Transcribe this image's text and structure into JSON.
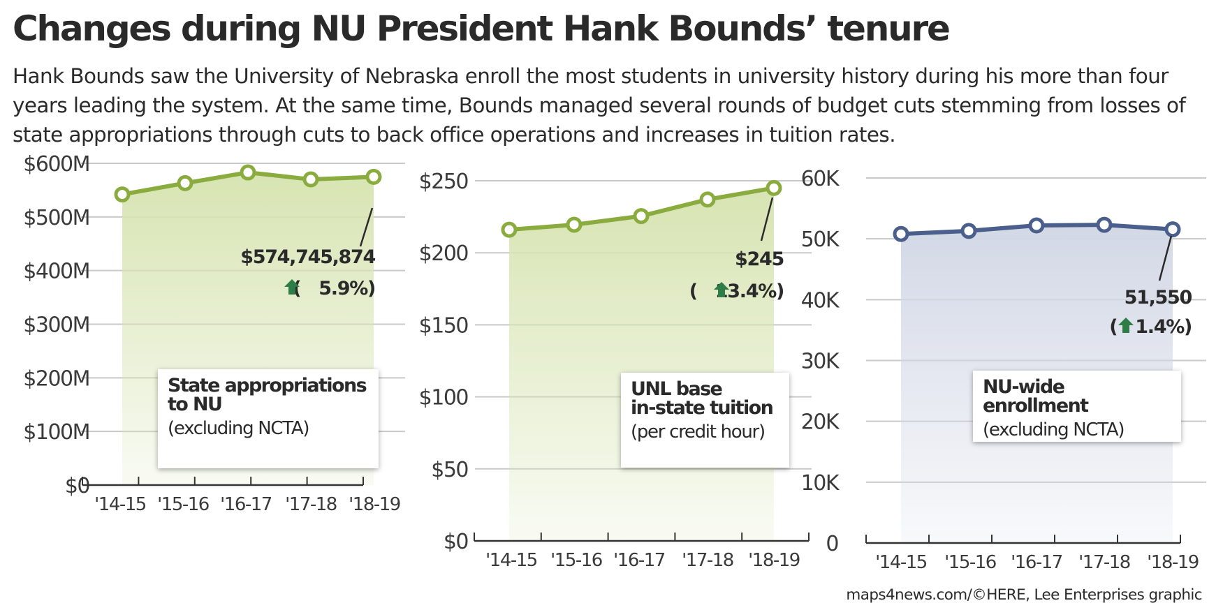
{
  "title": "Changes during NU President Hank Bounds’ tenure",
  "subtitle": "Hank Bounds saw the University of Nebraska enroll the most students in university history during his more than four years leading the system. At the same time, Bounds managed several rounds of budget cuts stemming from losses of state appropriations through cuts to back office operations and increases in tuition rates.",
  "credit": "maps4news.com/©HERE, Lee Enterprises graphic",
  "colors": {
    "green": "#8aac3f",
    "green_fill": "#d7e4b2",
    "blue": "#4a5f8c",
    "blue_fill": "#d3d8e6",
    "arrow": "#2e7d46",
    "grid": "#c9c9c9",
    "axis": "#333333"
  },
  "chart_data": [
    {
      "type": "line",
      "categories": [
        "'14-15",
        "'15-16",
        "'16-17",
        "'17-18",
        "'18-19"
      ],
      "values": [
        542000000,
        563000000,
        583000000,
        570000000,
        574745874
      ],
      "ylim": [
        0,
        600000000
      ],
      "yticks": [
        0,
        100000000,
        200000000,
        300000000,
        400000000,
        500000000,
        600000000
      ],
      "ytick_labels": [
        "$0",
        "$100M",
        "$200M",
        "$300M",
        "$400M",
        "$500M",
        "$600M"
      ],
      "label_title": "State appropriations\nto NU",
      "label_note": "(excluding NCTA)",
      "annotation_value": "$574,745,874",
      "annotation_change": "5.9%",
      "color": "green",
      "grid": true
    },
    {
      "type": "line",
      "categories": [
        "'14-15",
        "'15-16",
        "'16-17",
        "'17-18",
        "'18-19"
      ],
      "values": [
        216,
        219.5,
        225.5,
        237,
        245
      ],
      "ylim": [
        0,
        250
      ],
      "yticks": [
        0,
        50,
        100,
        150,
        200,
        250
      ],
      "ytick_labels": [
        "$0",
        "$50",
        "$100",
        "$150",
        "$200",
        "$250"
      ],
      "label_title": "UNL base\nin-state tuition",
      "label_note": "(per credit hour)",
      "annotation_value": "$245",
      "annotation_change": "13.4%",
      "color": "green",
      "grid": true
    },
    {
      "type": "line",
      "categories": [
        "'14-15",
        "'15-16",
        "'16-17",
        "'17-18",
        "'18-19"
      ],
      "values": [
        50800,
        51300,
        52200,
        52300,
        51550
      ],
      "ylim": [
        0,
        60000
      ],
      "yticks": [
        0,
        10000,
        20000,
        30000,
        40000,
        50000,
        60000
      ],
      "ytick_labels": [
        "0",
        "10K",
        "20K",
        "30K",
        "40K",
        "50K",
        "60K"
      ],
      "label_title": "NU-wide enrollment",
      "label_note": "(excluding NCTA)",
      "annotation_value": "51,550",
      "annotation_change": "1.4%",
      "color": "blue",
      "grid": true
    }
  ]
}
